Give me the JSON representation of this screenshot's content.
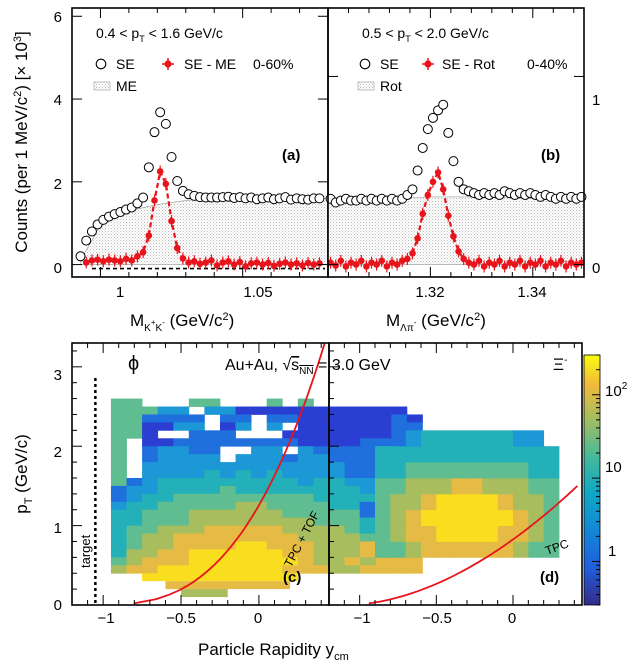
{
  "chart_data": [
    {
      "id": "a",
      "type": "scatter",
      "panel_label": "(a)",
      "title": "0.4 < pT < 1.6 GeV/c",
      "centrality": "0-60%",
      "xlabel": "M_{K+K-} (GeV/c^2)",
      "ylabel": "Counts (per 1 MeV/c^2) [× 10^3]",
      "xlim": [
        0.99,
        1.08
      ],
      "ylim": [
        -0.3,
        6.2
      ],
      "xticks": [
        1,
        1.05
      ],
      "xtick_labels": [
        "1",
        "1.05"
      ],
      "yticks": [
        0,
        2,
        4,
        6
      ],
      "ytick_labels": [
        "0",
        "2",
        "4",
        "6"
      ],
      "legend": [
        "SE",
        "SE - ME",
        "ME"
      ],
      "series": [
        {
          "name": "SE",
          "marker": "open-circle",
          "x": [
            0.993,
            0.995,
            0.997,
            0.999,
            1.001,
            1.003,
            1.005,
            1.007,
            1.009,
            1.011,
            1.013,
            1.015,
            1.017,
            1.019,
            1.021,
            1.023,
            1.025,
            1.027,
            1.029,
            1.031,
            1.033,
            1.035,
            1.037,
            1.039,
            1.041,
            1.043,
            1.045,
            1.047,
            1.049,
            1.051,
            1.053,
            1.055,
            1.057,
            1.059,
            1.061,
            1.063,
            1.065,
            1.067,
            1.069,
            1.071,
            1.073,
            1.075,
            1.077
          ],
          "y": [
            0.2,
            0.58,
            0.8,
            0.97,
            1.08,
            1.16,
            1.22,
            1.27,
            1.33,
            1.38,
            1.48,
            1.62,
            2.35,
            3.2,
            3.68,
            3.4,
            2.6,
            2.02,
            1.78,
            1.7,
            1.66,
            1.63,
            1.62,
            1.62,
            1.62,
            1.63,
            1.64,
            1.61,
            1.63,
            1.6,
            1.62,
            1.58,
            1.6,
            1.62,
            1.58,
            1.6,
            1.63,
            1.57,
            1.6,
            1.58,
            1.57,
            1.6,
            1.6
          ]
        },
        {
          "name": "SE - ME",
          "marker": "filled-circle",
          "x": [
            0.995,
            0.997,
            0.999,
            1.001,
            1.003,
            1.005,
            1.007,
            1.009,
            1.011,
            1.013,
            1.015,
            1.017,
            1.019,
            1.021,
            1.023,
            1.025,
            1.027,
            1.029,
            1.031,
            1.033,
            1.035,
            1.037,
            1.039,
            1.041,
            1.043,
            1.045,
            1.047,
            1.049,
            1.051,
            1.053,
            1.055,
            1.057,
            1.059,
            1.061,
            1.063,
            1.065,
            1.067,
            1.069,
            1.071,
            1.073,
            1.075,
            1.077
          ],
          "y": [
            0.05,
            0.1,
            0.12,
            0.08,
            0.12,
            0.1,
            0.08,
            0.14,
            0.1,
            0.2,
            0.3,
            0.7,
            1.55,
            2.25,
            1.95,
            1.05,
            0.4,
            0.15,
            0.05,
            0.08,
            0.02,
            0.05,
            0.1,
            -0.02,
            0.05,
            0.08,
            0.0,
            0.06,
            -0.04,
            0.03,
            0.05,
            0.0,
            0.04,
            -0.03,
            0.02,
            0.05,
            0.0,
            0.03,
            -0.02,
            0.04,
            0.0,
            0.03
          ]
        },
        {
          "name": "ME",
          "type": "area",
          "x": [
            0.993,
            1.0,
            1.01,
            1.02,
            1.03,
            1.04,
            1.05,
            1.06,
            1.07,
            1.08
          ],
          "y": [
            0.1,
            0.95,
            1.3,
            1.45,
            1.55,
            1.6,
            1.6,
            1.6,
            1.6,
            1.6
          ]
        }
      ]
    },
    {
      "id": "b",
      "type": "scatter",
      "panel_label": "(b)",
      "title": "0.5 < pT < 2.0 GeV/c",
      "centrality": "0-40%",
      "xlabel": "M_{Λπ-} (GeV/c^2)",
      "ylabel": "",
      "xlim": [
        1.3,
        1.35
      ],
      "ylim": [
        -0.066,
        1.364
      ],
      "xticks": [
        1.32,
        1.34
      ],
      "xtick_labels": [
        "1.32",
        "1.34"
      ],
      "yticks": [
        0,
        1
      ],
      "ytick_labels": [
        "0",
        "1"
      ],
      "legend": [
        "SE",
        "SE - Rot",
        "Rot"
      ],
      "series": [
        {
          "name": "SE",
          "marker": "open-circle",
          "x": [
            1.3005,
            1.3015,
            1.3025,
            1.3035,
            1.3045,
            1.3055,
            1.3065,
            1.3075,
            1.3085,
            1.3095,
            1.3105,
            1.3115,
            1.3125,
            1.3135,
            1.3145,
            1.3155,
            1.3165,
            1.3175,
            1.3185,
            1.3195,
            1.3205,
            1.3215,
            1.3225,
            1.3235,
            1.3245,
            1.3255,
            1.3265,
            1.3275,
            1.3285,
            1.3295,
            1.3305,
            1.3315,
            1.3325,
            1.3335,
            1.3345,
            1.3355,
            1.3365,
            1.3375,
            1.3385,
            1.3395,
            1.3405,
            1.3415,
            1.3425,
            1.3435,
            1.3445,
            1.3455,
            1.3465,
            1.3475,
            1.3485,
            1.3495
          ],
          "y": [
            0.35,
            0.33,
            0.34,
            0.35,
            0.34,
            0.34,
            0.35,
            0.34,
            0.35,
            0.34,
            0.35,
            0.34,
            0.35,
            0.34,
            0.35,
            0.37,
            0.4,
            0.5,
            0.62,
            0.72,
            0.78,
            0.82,
            0.85,
            0.7,
            0.55,
            0.44,
            0.4,
            0.39,
            0.38,
            0.37,
            0.38,
            0.37,
            0.38,
            0.37,
            0.39,
            0.38,
            0.37,
            0.38,
            0.37,
            0.38,
            0.37,
            0.36,
            0.37,
            0.36,
            0.35,
            0.36,
            0.35,
            0.36,
            0.35,
            0.36
          ]
        },
        {
          "name": "SE - Rot",
          "marker": "filled-circle",
          "x": [
            1.3005,
            1.3015,
            1.3025,
            1.3035,
            1.3045,
            1.3055,
            1.3065,
            1.3075,
            1.3085,
            1.3095,
            1.3105,
            1.3115,
            1.3125,
            1.3135,
            1.3145,
            1.3155,
            1.3165,
            1.3175,
            1.3185,
            1.3195,
            1.3205,
            1.3215,
            1.3225,
            1.3235,
            1.3245,
            1.3255,
            1.3265,
            1.3275,
            1.3285,
            1.3295,
            1.3305,
            1.3315,
            1.3325,
            1.3335,
            1.3345,
            1.3355,
            1.3365,
            1.3375,
            1.3385,
            1.3395,
            1.3405,
            1.3415,
            1.3425,
            1.3435,
            1.3445,
            1.3455,
            1.3465,
            1.3475,
            1.3485,
            1.3495
          ],
          "y": [
            0.01,
            -0.005,
            0.02,
            -0.01,
            0.01,
            0.0,
            0.02,
            -0.01,
            0.01,
            0.0,
            0.02,
            -0.01,
            0.01,
            0.0,
            0.02,
            0.03,
            0.06,
            0.14,
            0.27,
            0.37,
            0.44,
            0.49,
            0.4,
            0.26,
            0.15,
            0.07,
            0.03,
            0.01,
            0.0,
            0.02,
            -0.01,
            0.01,
            0.0,
            0.02,
            -0.01,
            0.01,
            0.0,
            0.02,
            -0.01,
            0.01,
            0.0,
            0.02,
            -0.01,
            0.01,
            0.0,
            0.02,
            -0.01,
            0.01,
            0.0,
            0.01
          ]
        },
        {
          "name": "Rot",
          "type": "area",
          "x": [
            1.3,
            1.31,
            1.32,
            1.33,
            1.34,
            1.35
          ],
          "y": [
            0.34,
            0.35,
            0.36,
            0.36,
            0.35,
            0.34
          ]
        }
      ]
    },
    {
      "id": "c",
      "type": "heatmap",
      "panel_label": "(c)",
      "particle": "ϕ",
      "title": "Au+Au, √sNN = 3.0 GeV",
      "xlabel": "Particle Rapidity y_cm",
      "ylabel": "p_T (GeV/c)",
      "xlim": [
        -1.2,
        0.45
      ],
      "ylim": [
        0,
        3.3
      ],
      "xticks": [
        -1,
        -0.5,
        0
      ],
      "xtick_labels": [
        "−1",
        "−0.5",
        "0"
      ],
      "yticks": [
        0,
        1,
        2,
        3
      ],
      "ytick_labels": [
        "0",
        "1",
        "2",
        "3"
      ],
      "annotations": [
        "target",
        "TPC + TOF"
      ],
      "target_line_x": -1.05,
      "grid": {
        "x_edges_start": -0.95,
        "x_step": 0.1,
        "y_edges_start": 0.4,
        "y_step": 0.1,
        "rows_top_to_bottom": [
          "ee...ee...e.e.......",
          "eeecc.ccaaaaaaaaaaa.",
          "eebbbb.bb.bbaaaaaaba",
          "eeaacc.ac.c.aaaaaabb",
          "eea..bbb...aaaaaaabb",
          "e.aabbbbbbbbaaaabbbb",
          "e.bccbb..cc.cbbbbcbb",
          "e.bcccc.cccbccbbbccc",
          "e.cccccccccccccbbbcc",
          "e.ccccdcdcdccccbbcdd",
          "ebcdddddddddcddccddd",
          "bccddddeddddddddcdde",
          "bcddeeeeeeeeeddddeee",
          "cddeeeeeffeeeeddeeff",
          "ddeeeffffffeeeeeefff",
          "ddeeeffffffffeeeeffg",
          "deefffgggggffffeefgg",
          "deffggggggggffffeggg",
          "deffgggghhgggfffgggg",
          "dffgghhhhhhggfffgggg",
          "efggghhhhhhhgffgfggg",
          "fgghhhhhhhhgggffgggg"
        ]
      }
    },
    {
      "id": "d",
      "type": "heatmap",
      "panel_label": "(d)",
      "particle": "Ξ-",
      "xlabel": "",
      "ylabel": "",
      "xlim": [
        -1.2,
        0.45
      ],
      "ylim": [
        0,
        3.3
      ],
      "xticks": [
        -1,
        -0.5,
        0
      ],
      "xtick_labels": [
        "−1",
        "−0.5",
        "0"
      ],
      "annotations": [
        "TPC"
      ],
      "colorbar": {
        "scale": "log",
        "range": [
          0.3,
          300
        ],
        "ticks": [
          1,
          10,
          100
        ],
        "tick_labels": [
          "1",
          "10",
          "10^2"
        ]
      }
    }
  ]
}
